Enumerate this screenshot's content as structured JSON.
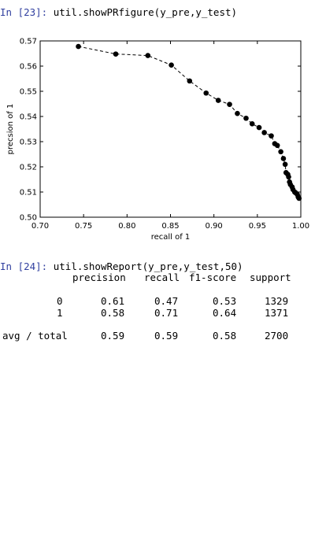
{
  "cells": [
    {
      "prompt": "In [23]:",
      "code": " util.showPRfigure(y_pre,y_test)"
    },
    {
      "prompt": "In [24]:",
      "code": " util.showReport(y_pre,y_test,50)"
    }
  ],
  "chart_data": {
    "type": "line",
    "xlabel": "recall of 1",
    "ylabel": "precsion of 1",
    "xlim": [
      0.7,
      1.0
    ],
    "ylim": [
      0.5,
      0.57
    ],
    "xticks": [
      "0.70",
      "0.75",
      "0.80",
      "0.85",
      "0.90",
      "0.95",
      "1.00"
    ],
    "yticks": [
      "0.50",
      "0.51",
      "0.52",
      "0.53",
      "0.54",
      "0.55",
      "0.56",
      "0.57"
    ],
    "line_style": "dashed",
    "marker": "circle",
    "color": "#000000",
    "x": [
      0.744,
      0.787,
      0.824,
      0.851,
      0.872,
      0.891,
      0.905,
      0.918,
      0.927,
      0.937,
      0.944,
      0.952,
      0.958,
      0.966,
      0.97,
      0.973,
      0.977,
      0.98,
      0.982,
      0.983,
      0.985,
      0.986,
      0.987,
      0.988,
      0.99,
      0.991,
      0.993,
      0.994,
      0.996,
      0.997,
      0.998
    ],
    "y": [
      0.5678,
      0.5648,
      0.5642,
      0.5604,
      0.5541,
      0.5493,
      0.5464,
      0.5448,
      0.5412,
      0.5393,
      0.5371,
      0.5356,
      0.5336,
      0.5323,
      0.5292,
      0.5285,
      0.526,
      0.5233,
      0.521,
      0.5177,
      0.517,
      0.516,
      0.514,
      0.513,
      0.512,
      0.511,
      0.51,
      0.5097,
      0.509,
      0.508,
      0.5075
    ]
  },
  "report": {
    "headers": [
      "precision",
      "recall",
      "f1-score",
      "support"
    ],
    "rows": [
      {
        "label": "0",
        "precision": "0.61",
        "recall": "0.47",
        "f1": "0.53",
        "support": "1329"
      },
      {
        "label": "1",
        "precision": "0.58",
        "recall": "0.71",
        "f1": "0.64",
        "support": "1371"
      }
    ],
    "total": {
      "label": "avg / total",
      "precision": "0.59",
      "recall": "0.59",
      "f1": "0.58",
      "support": "2700"
    }
  }
}
